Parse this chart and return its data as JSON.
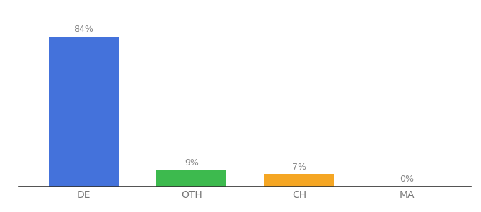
{
  "categories": [
    "DE",
    "OTH",
    "CH",
    "MA"
  ],
  "values": [
    84,
    9,
    7,
    0
  ],
  "labels": [
    "84%",
    "9%",
    "7%",
    "0%"
  ],
  "bar_colors": [
    "#4472db",
    "#3dba4e",
    "#f5a623",
    "#cccccc"
  ],
  "background_color": "#ffffff",
  "label_color": "#888888",
  "tick_color": "#777777",
  "ylim": [
    0,
    95
  ],
  "bar_width": 0.65,
  "figsize": [
    6.8,
    3.0
  ],
  "dpi": 100
}
